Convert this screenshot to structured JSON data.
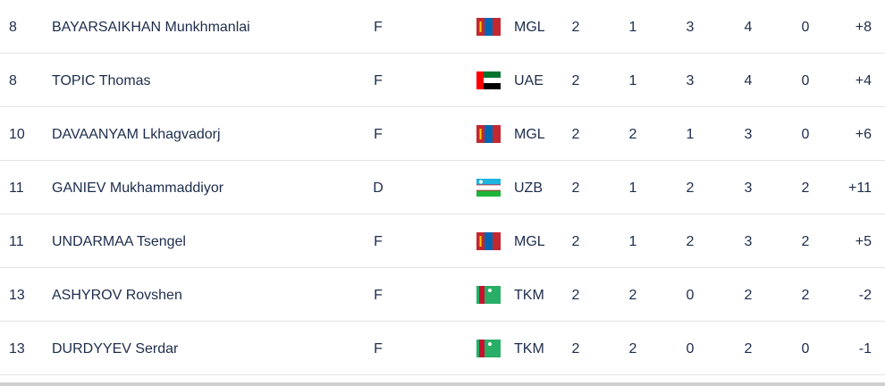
{
  "table": {
    "rows": [
      [
        8,
        "BAYARSAIKHAN Munkhmanlai",
        "F",
        "MGL",
        2,
        1,
        3,
        4,
        0,
        "+8"
      ],
      [
        8,
        "TOPIC Thomas",
        "F",
        "UAE",
        2,
        1,
        3,
        4,
        0,
        "+4"
      ],
      [
        10,
        "DAVAANYAM Lkhagvadorj",
        "F",
        "MGL",
        2,
        2,
        1,
        3,
        0,
        "+6"
      ],
      [
        11,
        "GANIEV Mukhammaddiyor",
        "D",
        "UZB",
        2,
        1,
        2,
        3,
        2,
        "+11"
      ],
      [
        11,
        "UNDARMAA Tsengel",
        "F",
        "MGL",
        2,
        1,
        2,
        3,
        2,
        "+5"
      ],
      [
        13,
        "ASHYROV Rovshen",
        "F",
        "TKM",
        2,
        2,
        0,
        2,
        2,
        -2
      ],
      [
        13,
        "DURDYYEV Serdar",
        "F",
        "TKM",
        2,
        2,
        0,
        2,
        0,
        -1
      ]
    ]
  }
}
